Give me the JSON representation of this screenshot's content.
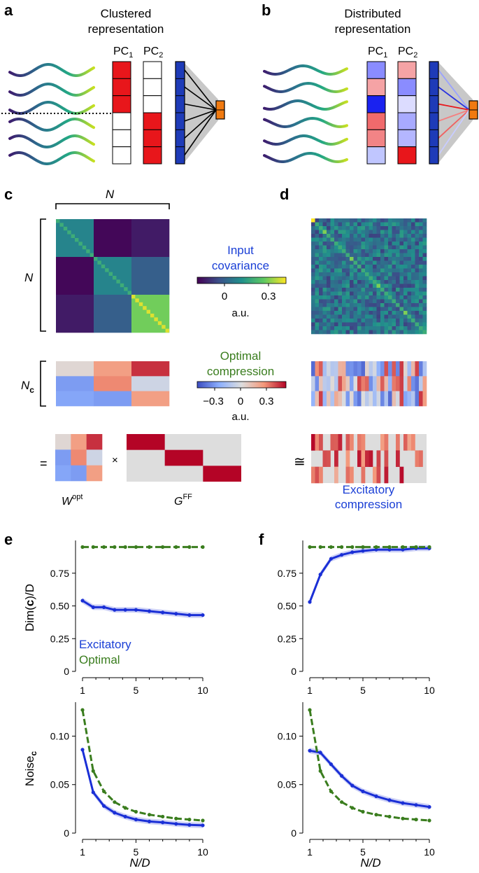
{
  "panels": {
    "a": {
      "letter": "a",
      "title_line1": "Clustered",
      "title_line2": "representation",
      "pc1": "PC",
      "pc2": "PC",
      "sub1": "1",
      "sub2": "2"
    },
    "b": {
      "letter": "b",
      "title_line1": "Distributed",
      "title_line2": "representation",
      "pc1": "PC",
      "pc2": "PC",
      "sub1": "1",
      "sub2": "2"
    },
    "c": {
      "letter": "c",
      "n_top": "N",
      "n_left": "N",
      "nc_main": "N",
      "nc_sub": "c",
      "w_main": "W",
      "w_sup": "opt",
      "g_main": "G",
      "g_sup": "FF",
      "equals": "=",
      "times": "×"
    },
    "d": {
      "letter": "d",
      "approx": "≅",
      "excitatory_line1": "Excitatory",
      "excitatory_line2": "compression"
    },
    "e": {
      "letter": "e"
    },
    "f": {
      "letter": "f"
    }
  },
  "colorbars": {
    "input": {
      "label_line1": "Input",
      "label_line2": "covariance",
      "ticks": [
        "0",
        "0.3"
      ],
      "unit": "a.u."
    },
    "optimal": {
      "label_line1": "Optimal",
      "label_line2": "compression",
      "ticks": [
        "−0.3",
        "0",
        "0.3"
      ],
      "unit": "a.u."
    }
  },
  "colors": {
    "excitatory": "#1a2fd6",
    "optimal": "#3a7d1e",
    "red": "#e8161b",
    "orange": "#f07a10",
    "navy": "#1e3bb8"
  },
  "chart_data": [
    {
      "panel": "e-top",
      "type": "line",
      "ylabel_main": "Dim(",
      "ylabel_bold": "c",
      "ylabel_rest": ")/D",
      "xlim": [
        1,
        10
      ],
      "ylim": [
        0,
        1.0
      ],
      "xticks": [
        "1",
        "5",
        "10"
      ],
      "yticks": [
        "0",
        "0.25",
        "0.50",
        "0.75"
      ],
      "legend": [
        "Excitatory",
        "Optimal"
      ],
      "series": [
        {
          "name": "Excitatory",
          "x": [
            1,
            1.8,
            2.6,
            3.4,
            4.2,
            5,
            6,
            7,
            8,
            9,
            10
          ],
          "values": [
            0.54,
            0.49,
            0.49,
            0.47,
            0.47,
            0.47,
            0.46,
            0.45,
            0.44,
            0.43,
            0.43
          ]
        },
        {
          "name": "Optimal",
          "x": [
            1,
            1.8,
            2.6,
            3.4,
            4.2,
            5,
            6,
            7,
            8,
            9,
            10
          ],
          "values": [
            0.95,
            0.95,
            0.95,
            0.95,
            0.95,
            0.95,
            0.95,
            0.95,
            0.95,
            0.95,
            0.95
          ]
        }
      ]
    },
    {
      "panel": "f-top",
      "type": "line",
      "xlim": [
        1,
        10
      ],
      "ylim": [
        0,
        1.0
      ],
      "xticks": [
        "1",
        "5",
        "10"
      ],
      "yticks": [
        "0",
        "0.25",
        "0.50",
        "0.75"
      ],
      "series": [
        {
          "name": "Excitatory",
          "x": [
            1,
            1.8,
            2.6,
            3.4,
            4.2,
            5,
            6,
            7,
            8,
            9,
            10
          ],
          "values": [
            0.53,
            0.74,
            0.86,
            0.89,
            0.91,
            0.92,
            0.93,
            0.93,
            0.93,
            0.94,
            0.94
          ]
        },
        {
          "name": "Optimal",
          "x": [
            1,
            1.8,
            2.6,
            3.4,
            4.2,
            5,
            6,
            7,
            8,
            9,
            10
          ],
          "values": [
            0.95,
            0.95,
            0.95,
            0.95,
            0.95,
            0.95,
            0.95,
            0.95,
            0.95,
            0.95,
            0.95
          ]
        }
      ]
    },
    {
      "panel": "e-bottom",
      "type": "line",
      "ylabel_main": "Noise",
      "ylabel_sub": "c",
      "xlabel": "N/D",
      "xlim": [
        1,
        10
      ],
      "ylim": [
        0,
        0.135
      ],
      "xticks": [
        "1",
        "5",
        "10"
      ],
      "yticks": [
        "0",
        "0.05",
        "0.10"
      ],
      "series": [
        {
          "name": "Excitatory",
          "x": [
            1,
            1.8,
            2.6,
            3.4,
            4.2,
            5,
            6,
            7,
            8,
            9,
            10
          ],
          "values": [
            0.086,
            0.042,
            0.028,
            0.021,
            0.017,
            0.014,
            0.012,
            0.011,
            0.0095,
            0.0085,
            0.008
          ]
        },
        {
          "name": "Optimal",
          "x": [
            1,
            1.8,
            2.6,
            3.4,
            4.2,
            5,
            6,
            7,
            8,
            9,
            10
          ],
          "values": [
            0.127,
            0.064,
            0.043,
            0.032,
            0.026,
            0.022,
            0.019,
            0.017,
            0.015,
            0.014,
            0.013
          ]
        }
      ]
    },
    {
      "panel": "f-bottom",
      "type": "line",
      "xlabel": "N/D",
      "xlim": [
        1,
        10
      ],
      "ylim": [
        0,
        0.135
      ],
      "xticks": [
        "1",
        "5",
        "10"
      ],
      "yticks": [
        "0",
        "0.05",
        "0.10"
      ],
      "series": [
        {
          "name": "Excitatory",
          "x": [
            1,
            1.8,
            2.6,
            3.4,
            4.2,
            5,
            6,
            7,
            8,
            9,
            10
          ],
          "values": [
            0.085,
            0.083,
            0.071,
            0.059,
            0.049,
            0.043,
            0.038,
            0.034,
            0.031,
            0.029,
            0.027
          ]
        },
        {
          "name": "Optimal",
          "x": [
            1,
            1.8,
            2.6,
            3.4,
            4.2,
            5,
            6,
            7,
            8,
            9,
            10
          ],
          "values": [
            0.127,
            0.064,
            0.043,
            0.032,
            0.026,
            0.022,
            0.019,
            0.017,
            0.015,
            0.014,
            0.013
          ]
        }
      ]
    }
  ]
}
